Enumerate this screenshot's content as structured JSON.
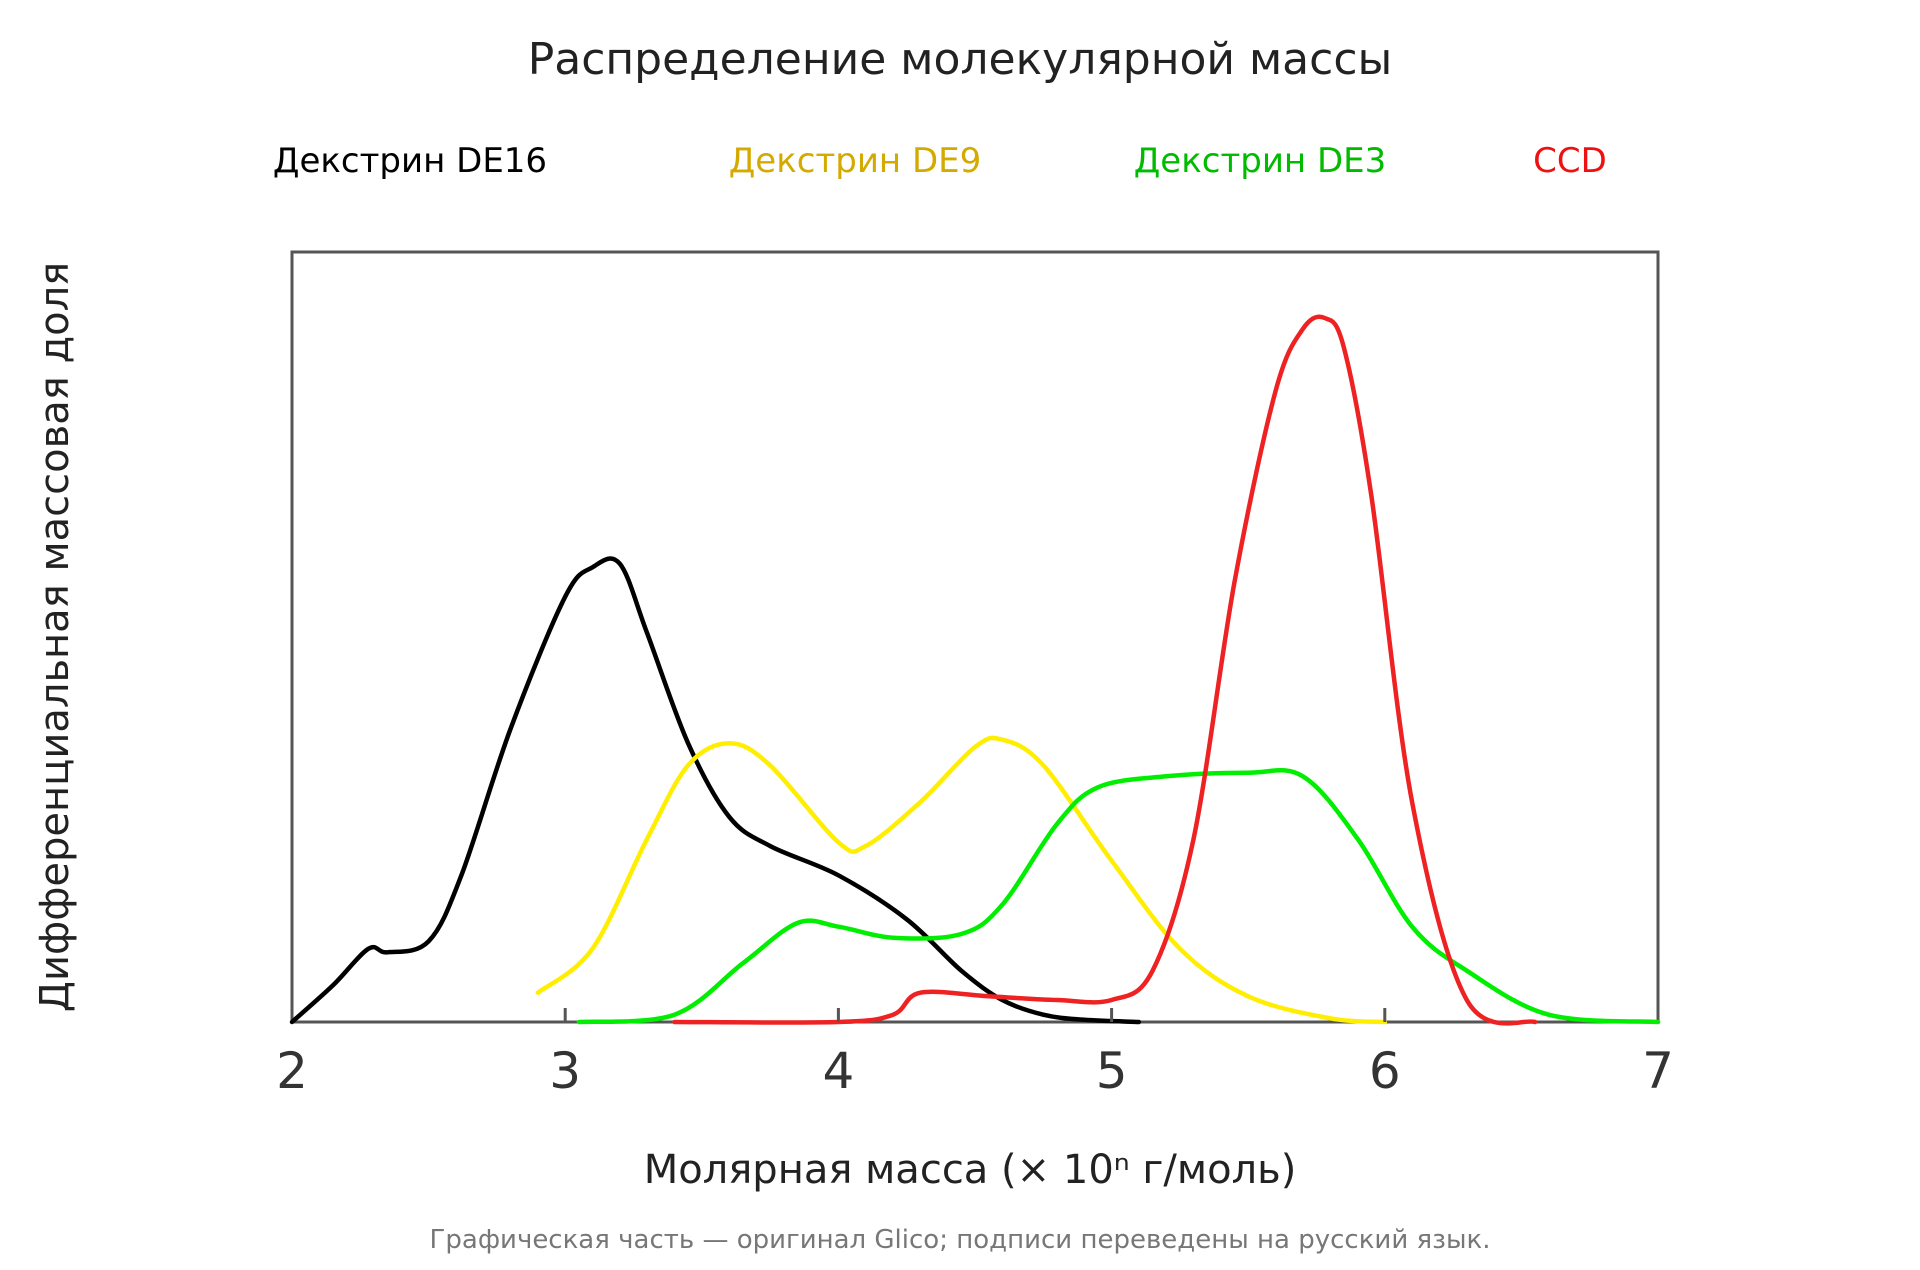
{
  "chart_data": {
    "type": "line",
    "title": "Распределение молекулярной массы",
    "xlabel": "Молярная масса (× 10ⁿ г/моль)",
    "ylabel": "Дифференциальная массовая доля",
    "xlim": [
      2,
      7
    ],
    "ylim": [
      0,
      1.05
    ],
    "x_ticks": [
      2,
      3,
      4,
      5,
      6,
      7
    ],
    "x_tick_labels": [
      "2",
      "3",
      "4",
      "5",
      "6",
      "7"
    ],
    "grid": false,
    "legend_position": "top",
    "footnote": "Графическая часть — оригинал Glico; подписи переведены на русский язык.",
    "series": [
      {
        "name": "Декстрин DE16",
        "color": "#000000",
        "legend_color": "#000000",
        "x": [
          2.0,
          2.15,
          2.28,
          2.35,
          2.5,
          2.62,
          2.8,
          3.0,
          3.1,
          3.2,
          3.3,
          3.45,
          3.6,
          3.75,
          4.0,
          4.25,
          4.45,
          4.6,
          4.75,
          4.9,
          5.1
        ],
        "y": [
          0.0,
          0.05,
          0.1,
          0.095,
          0.11,
          0.2,
          0.4,
          0.58,
          0.62,
          0.625,
          0.53,
          0.38,
          0.28,
          0.24,
          0.2,
          0.14,
          0.07,
          0.03,
          0.01,
          0.003,
          0.0
        ]
      },
      {
        "name": "Декстрин DE9",
        "color": "#ffee00",
        "legend_color": "#d4aa00",
        "x": [
          2.9,
          3.1,
          3.3,
          3.45,
          3.6,
          3.75,
          4.0,
          4.1,
          4.3,
          4.5,
          4.6,
          4.75,
          5.0,
          5.25,
          5.5,
          5.8,
          6.0
        ],
        "y": [
          0.04,
          0.1,
          0.25,
          0.35,
          0.38,
          0.35,
          0.245,
          0.24,
          0.3,
          0.375,
          0.385,
          0.35,
          0.22,
          0.1,
          0.035,
          0.005,
          0.0
        ]
      },
      {
        "name": "Декстрин DE3",
        "color": "#00ee00",
        "legend_color": "#00bb00",
        "x": [
          3.05,
          3.4,
          3.65,
          3.85,
          4.0,
          4.2,
          4.45,
          4.6,
          4.8,
          4.95,
          5.2,
          5.5,
          5.7,
          5.9,
          6.1,
          6.3,
          6.6,
          7.0
        ],
        "y": [
          0.0,
          0.01,
          0.08,
          0.135,
          0.13,
          0.115,
          0.12,
          0.16,
          0.27,
          0.32,
          0.335,
          0.34,
          0.335,
          0.25,
          0.13,
          0.07,
          0.01,
          0.0
        ]
      },
      {
        "name": "CCD",
        "color": "#ee2222",
        "legend_color": "#ee1111",
        "x": [
          3.4,
          4.0,
          4.2,
          4.3,
          4.55,
          4.8,
          5.0,
          5.15,
          5.3,
          5.45,
          5.6,
          5.7,
          5.78,
          5.85,
          5.95,
          6.1,
          6.3,
          6.55
        ],
        "y": [
          0.0,
          0.0,
          0.01,
          0.04,
          0.035,
          0.03,
          0.03,
          0.07,
          0.25,
          0.6,
          0.86,
          0.945,
          0.96,
          0.92,
          0.72,
          0.3,
          0.03,
          0.0
        ]
      }
    ]
  }
}
